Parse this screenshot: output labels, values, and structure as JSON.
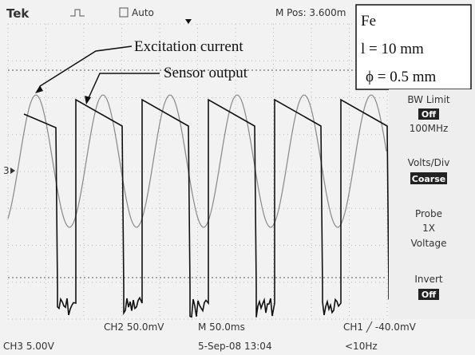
{
  "header": {
    "brand": "Tek",
    "trigger": "Auto",
    "position": "M Pos: 3.600m"
  },
  "inset": {
    "material": "Fe",
    "length": "l = 10 mm",
    "diameter": "ϕ = 0.5 mm"
  },
  "annotations": {
    "excitation": "Excitation current",
    "sensor": "Sensor output"
  },
  "channel_marker": "3",
  "menu": {
    "bw_title": "BW Limit",
    "bw_state": "Off",
    "bw_value": "100MHz",
    "vd_title": "Volts/Div",
    "vd_state": "Coarse",
    "probe_title": "Probe",
    "probe_value": "1X",
    "probe_kind": "Voltage",
    "invert_title": "Invert",
    "invert_state": "Off"
  },
  "footer": {
    "ch2": "CH2  50.0mV",
    "time": "M 50.0ms",
    "ch1": "CH1 ╱ -40.0mV",
    "ch3": "CH3  5.00V",
    "date": "5-Sep-08 13:04",
    "freq": "<10Hz"
  }
}
